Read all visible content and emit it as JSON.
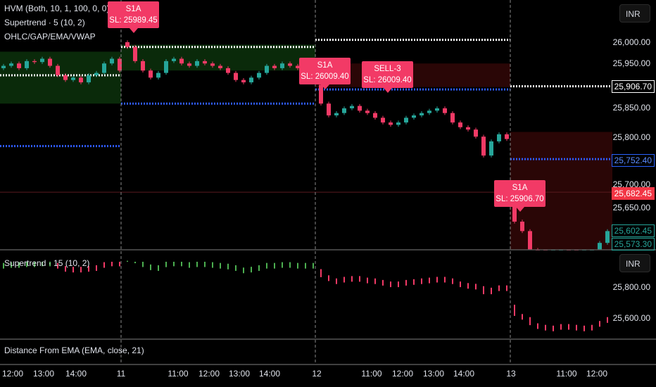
{
  "chart_data": {
    "type": "candlestick",
    "legend": [
      "HVM (Both, 10, 1, 100, 0, 0)",
      "Supertrend · 5 (10, 2)",
      "OHLC/GAP/EMA/VWAP"
    ],
    "currency": "INR",
    "y_ticks": [
      "26,000.00",
      "25,950.00",
      "25,850.00",
      "25,800.00",
      "25,700.00",
      "25,650.00"
    ],
    "ylim": [
      25560,
      26090
    ],
    "price_tags": [
      {
        "value": "25,906.70",
        "color": "#ffffff",
        "style": "outline"
      },
      {
        "value": "25,752.40",
        "color": "#2962ff",
        "style": "outline"
      },
      {
        "value": "25,682.45",
        "color": "#f23645",
        "style": "filled"
      },
      {
        "value": "25,602.45",
        "color": "#26a69a",
        "style": "outline"
      },
      {
        "value": "25,573.30",
        "color": "#26a69a",
        "style": "outline"
      }
    ],
    "x_ticks": [
      "12:00",
      "13:00",
      "14:00",
      "11",
      "11:00",
      "12:00",
      "13:00",
      "14:00",
      "12",
      "11:00",
      "12:00",
      "13:00",
      "14:00",
      "13",
      "11:00",
      "12:00"
    ],
    "day_separators": [
      "11",
      "12",
      "13"
    ],
    "closes": [
      25950,
      25955,
      25945,
      25960,
      25958,
      25965,
      25950,
      25930,
      25920,
      25925,
      25915,
      25930,
      25935,
      25955,
      25965,
      25940,
      25990,
      25960,
      25940,
      25925,
      25935,
      25960,
      25965,
      25955,
      25950,
      25960,
      25955,
      25950,
      25945,
      25935,
      25920,
      25915,
      25925,
      25935,
      25950,
      25945,
      25955,
      25950,
      25945,
      25950,
      25950,
      25870,
      25845,
      25850,
      25860,
      25865,
      25855,
      25850,
      25840,
      25830,
      25825,
      25830,
      25840,
      25845,
      25850,
      25855,
      25860,
      25850,
      25830,
      25820,
      25815,
      25800,
      25760,
      25790,
      25805,
      25795,
      25620,
      25600,
      25560,
      25550,
      25540,
      25545,
      25555,
      25550,
      25540,
      25545,
      25550,
      25575,
      25600
    ],
    "day_start_index": [
      16,
      41,
      66
    ],
    "levels": {
      "white_dotted": [
        25930,
        25990,
        26005,
        25906.7
      ],
      "blue_dotted": [
        25780,
        25870,
        25900,
        25752.4
      ],
      "price_line": 25682.45
    },
    "signals": [
      {
        "title": "S1A",
        "sl": "SL: 25989.45"
      },
      {
        "title": "S1A",
        "sl": "SL: 26009.40"
      },
      {
        "title": "SELL-3",
        "sl": "SL: 26009.40"
      },
      {
        "title": "S1A",
        "sl": "SL: 25906.70"
      }
    ],
    "colors": {
      "up": "#26a69a",
      "down": "#f23a66",
      "signal": "#f23a66",
      "green_zone": "#0a2a0a",
      "red_zone": "#2a0606"
    },
    "pane2": {
      "title": "Supertrend · 15 (10, 2)",
      "currency": "INR",
      "y_ticks": [
        "25,800.00",
        "25,600.00"
      ]
    },
    "pane3": {
      "title": "Distance From EMA (EMA, close, 21)"
    }
  }
}
